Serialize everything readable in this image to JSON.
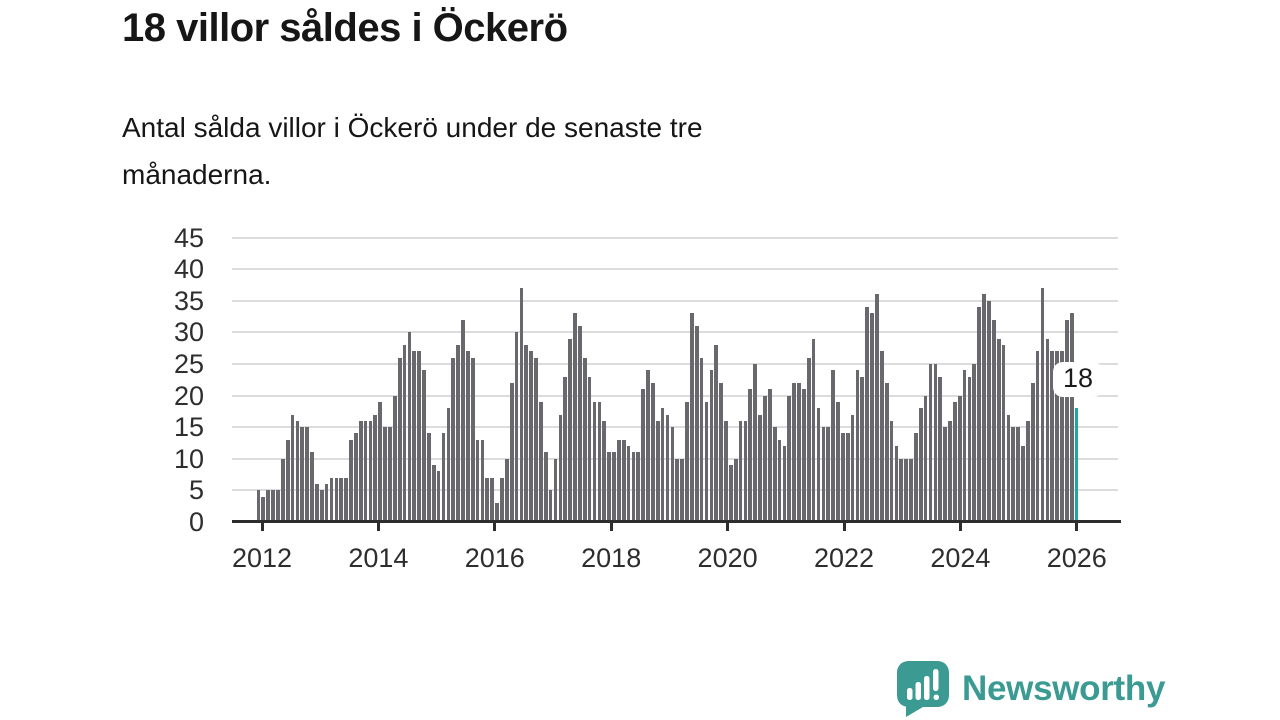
{
  "header": {
    "title": "18 villor såldes i Öckerö",
    "subtitle_line1": "Antal sålda villor i Öckerö under de senaste tre",
    "subtitle_line2": "månaderna."
  },
  "annotation": {
    "last_value_label": "18"
  },
  "branding": {
    "name": "Newsworthy",
    "icon": "newsworthy-speech-bubble-bar-chart-icon",
    "color": "#3b9b93"
  },
  "colors": {
    "bar": "#68686d",
    "highlight_bar": "#1da7a2",
    "grid": "#dcdcdc",
    "axis": "#2d2d2d",
    "heading_text": "#161616",
    "axis_label_text": "#2e2e2e",
    "annotation_bg": "#ffffff"
  },
  "chart_data": {
    "type": "bar",
    "title": "18 villor såldes i Öckerö",
    "subtitle": "Antal sålda villor i Öckerö under de senaste tre månaderna.",
    "frequency": "monthly",
    "x_start": "2012-01",
    "x_end": "2026-01",
    "x_tick_labels": [
      "2012",
      "2014",
      "2016",
      "2018",
      "2020",
      "2022",
      "2024",
      "2026"
    ],
    "y_ticks": [
      0,
      5,
      10,
      15,
      20,
      25,
      30,
      35,
      40,
      45
    ],
    "ylim": [
      0,
      45
    ],
    "grid": true,
    "legend": false,
    "highlight_last_bar": true,
    "last_value": 18,
    "values_by_year": {
      "2012": [
        5,
        4,
        5,
        5,
        5,
        10,
        13,
        17,
        16,
        15,
        15,
        11
      ],
      "2013": [
        6,
        5,
        6,
        7,
        7,
        7,
        7,
        13,
        14,
        16,
        16,
        16
      ],
      "2014": [
        17,
        19,
        15,
        15,
        20,
        26,
        28,
        30,
        27,
        27,
        24,
        14
      ],
      "2015": [
        9,
        8,
        14,
        18,
        26,
        28,
        32,
        27,
        26,
        13,
        13,
        7
      ],
      "2016": [
        7,
        3,
        7,
        10,
        22,
        30,
        37,
        28,
        27,
        26,
        19,
        11
      ],
      "2017": [
        5,
        10,
        17,
        23,
        29,
        33,
        31,
        26,
        23,
        19,
        19,
        16
      ],
      "2018": [
        11,
        11,
        13,
        13,
        12,
        11,
        11,
        21,
        24,
        22,
        16,
        18
      ],
      "2019": [
        17,
        15,
        10,
        10,
        19,
        33,
        31,
        26,
        19,
        24,
        28,
        22
      ],
      "2020": [
        16,
        9,
        10,
        16,
        16,
        21,
        25,
        17,
        20,
        21,
        15,
        13
      ],
      "2021": [
        12,
        20,
        22,
        22,
        21,
        26,
        29,
        18,
        15,
        15,
        24,
        19
      ],
      "2022": [
        14,
        14,
        17,
        24,
        23,
        34,
        33,
        36,
        27,
        22,
        16,
        12
      ],
      "2023": [
        10,
        10,
        10,
        14,
        18,
        20,
        25,
        25,
        23,
        15,
        16,
        19
      ],
      "2024": [
        20,
        24,
        23,
        25,
        34,
        36,
        35,
        32,
        29,
        28,
        17,
        15
      ],
      "2025": [
        15,
        12,
        16,
        22,
        27,
        37,
        29,
        27,
        27,
        27,
        32,
        33
      ],
      "2026": [
        18
      ]
    }
  }
}
